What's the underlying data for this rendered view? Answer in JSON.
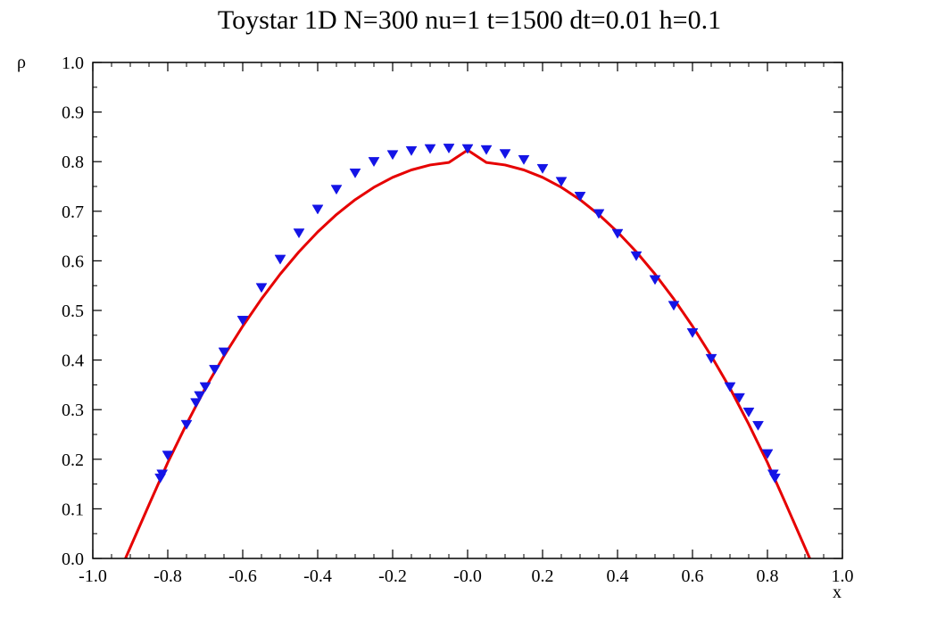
{
  "chart_data": {
    "type": "scatter",
    "title": "Toystar 1D N=300 nu=1 t=1500 dt=0.01 h=0.1",
    "xlabel": "x",
    "ylabel": "ρ",
    "xlim": [
      -1.0,
      1.0
    ],
    "ylim": [
      0.0,
      1.0
    ],
    "x_ticks": [
      "-1.0",
      "-0.8",
      "-0.6",
      "-0.4",
      "-0.2",
      "-0.0",
      "0.2",
      "0.4",
      "0.6",
      "0.8",
      "1.0"
    ],
    "y_ticks": [
      "0.0",
      "0.1",
      "0.2",
      "0.3",
      "0.4",
      "0.5",
      "0.6",
      "0.7",
      "0.8",
      "0.9",
      "1.0"
    ],
    "grid": false,
    "series": [
      {
        "kind": "markers",
        "marker": "triangle-down",
        "color": "#1414e6",
        "x": [
          -0.82,
          -0.815,
          -0.8,
          -0.75,
          -0.725,
          -0.715,
          -0.7,
          -0.675,
          -0.65,
          -0.6,
          -0.55,
          -0.5,
          -0.45,
          -0.4,
          -0.35,
          -0.3,
          -0.25,
          -0.2,
          -0.15,
          -0.1,
          -0.05,
          0.0,
          0.05,
          0.1,
          0.15,
          0.2,
          0.25,
          0.3,
          0.35,
          0.4,
          0.45,
          0.5,
          0.55,
          0.6,
          0.65,
          0.7,
          0.725,
          0.75,
          0.775,
          0.8,
          0.815,
          0.82
        ],
        "y": [
          0.162,
          0.17,
          0.208,
          0.27,
          0.314,
          0.328,
          0.346,
          0.381,
          0.416,
          0.48,
          0.546,
          0.603,
          0.656,
          0.704,
          0.744,
          0.777,
          0.8,
          0.814,
          0.822,
          0.826,
          0.827,
          0.826,
          0.824,
          0.816,
          0.804,
          0.786,
          0.76,
          0.73,
          0.695,
          0.655,
          0.61,
          0.562,
          0.51,
          0.455,
          0.403,
          0.346,
          0.324,
          0.295,
          0.268,
          0.211,
          0.17,
          0.162
        ]
      },
      {
        "kind": "line",
        "color": "#e60000",
        "x": [
          -0.9129,
          -0.85,
          -0.8,
          -0.75,
          -0.7,
          -0.65,
          -0.6,
          -0.55,
          -0.5,
          -0.45,
          -0.4,
          -0.35,
          -0.3,
          -0.25,
          -0.2,
          -0.15,
          -0.1,
          -0.05,
          0.0,
          0.05,
          0.1,
          0.15,
          0.2,
          0.25,
          0.3,
          0.35,
          0.4,
          0.45,
          0.5,
          0.55,
          0.6,
          0.65,
          0.7,
          0.75,
          0.8,
          0.85,
          0.9129
        ],
        "y": [
          0.0,
          0.1083,
          0.1933,
          0.2708,
          0.3433,
          0.4083,
          0.4683,
          0.5233,
          0.5733,
          0.6183,
          0.6583,
          0.6933,
          0.7233,
          0.7483,
          0.7683,
          0.7833,
          0.7933,
          0.7983,
          0.8233,
          0.7983,
          0.7933,
          0.7833,
          0.7683,
          0.7483,
          0.7233,
          0.6933,
          0.6583,
          0.6183,
          0.5733,
          0.5233,
          0.4683,
          0.4083,
          0.3433,
          0.2708,
          0.1933,
          0.1083,
          0.0
        ]
      }
    ]
  }
}
